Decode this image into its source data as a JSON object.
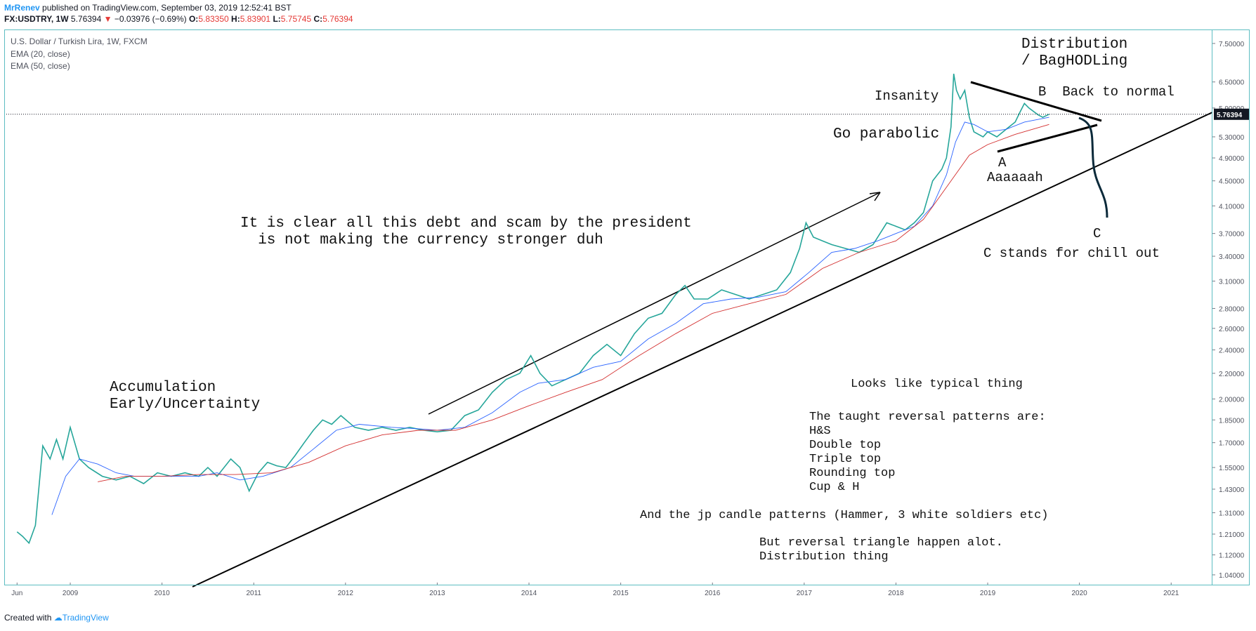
{
  "header": {
    "author": "MrRenev",
    "published": "published on TradingView.com, September 03, 2019 12:52:41 BST",
    "symbol": "FX:USDTRY, 1W",
    "last": "5.76394",
    "change": "−0.03976 (−0.69%)",
    "o_label": "O:",
    "o": "5.83350",
    "h_label": "H:",
    "h": "5.83901",
    "l_label": "L:",
    "l": "5.75745",
    "c_label": "C:",
    "c": "5.76394"
  },
  "legend": {
    "title": "U.S. Dollar / Turkish Lira, 1W, FXCM",
    "ema20": "EMA (20, close)",
    "ema50": "EMA (50, close)"
  },
  "annotations": {
    "distribution": "Distribution\n/ BagHODLing",
    "insanity": "Insanity",
    "b_back": "B  Back to normal",
    "go_parabolic": "Go parabolic",
    "a": "A",
    "aaaaaah": "Aaaaaah",
    "c": "C",
    "c_chill": "C stands for chill out",
    "debt": "It is clear all this debt and scam by the president\n  is not making the currency stronger duh",
    "accumulation": "Accumulation\nEarly/Uncertainty",
    "typical": "Looks like typical thing",
    "patterns": "The taught reversal patterns are:\nH&S\nDouble top\nTriple top\nRounding top\nCup & H",
    "jp": "And the jp candle patterns (Hammer, 3 white soldiers etc)",
    "triangle": "But reversal triangle happen alot.\nDistribution thing"
  },
  "footer": {
    "created": "Created with",
    "brand": "TradingView"
  },
  "colors": {
    "price": "#26a69a",
    "ema20": "#2962ff",
    "ema50": "#d32f2f",
    "frame": "#5dbdc2",
    "last_badge": "#131722"
  },
  "chart_data": {
    "type": "line",
    "title": "U.S. Dollar / Turkish Lira, 1W, FXCM",
    "y_scale": "log",
    "ylim": [
      1.0,
      7.9
    ],
    "xlim": [
      2008.28,
      2021.45
    ],
    "y_ticks": [
      "7.50000",
      "6.50000",
      "5.90000",
      "5.30000",
      "4.90000",
      "4.50000",
      "4.10000",
      "3.70000",
      "3.40000",
      "3.10000",
      "2.80000",
      "2.60000",
      "2.40000",
      "2.20000",
      "2.00000",
      "1.85000",
      "1.70000",
      "1.55000",
      "1.43000",
      "1.31000",
      "1.21000",
      "1.12000",
      "1.04000"
    ],
    "x_ticks": [
      {
        "label": "Jun",
        "x": 2008.42
      },
      {
        "label": "2009",
        "x": 2009.0
      },
      {
        "label": "2010",
        "x": 2010.0
      },
      {
        "label": "2011",
        "x": 2011.0
      },
      {
        "label": "2012",
        "x": 2012.0
      },
      {
        "label": "2013",
        "x": 2013.0
      },
      {
        "label": "2014",
        "x": 2014.0
      },
      {
        "label": "2015",
        "x": 2015.0
      },
      {
        "label": "2016",
        "x": 2016.0
      },
      {
        "label": "2017",
        "x": 2017.0
      },
      {
        "label": "2018",
        "x": 2018.0
      },
      {
        "label": "2019",
        "x": 2019.0
      },
      {
        "label": "2020",
        "x": 2020.0
      },
      {
        "label": "2021",
        "x": 2021.0
      }
    ],
    "last_value_label": "5.76394",
    "last_value": 5.76394,
    "series": [
      {
        "name": "U.S. Dollar / Turkish Lira, 1W, FXCM",
        "x": [
          2008.42,
          2008.48,
          2008.55,
          2008.62,
          2008.7,
          2008.78,
          2008.85,
          2008.92,
          2009.0,
          2009.1,
          2009.2,
          2009.35,
          2009.5,
          2009.65,
          2009.8,
          2009.95,
          2010.1,
          2010.25,
          2010.4,
          2010.5,
          2010.6,
          2010.75,
          2010.85,
          2010.95,
          2011.05,
          2011.15,
          2011.25,
          2011.35,
          2011.45,
          2011.55,
          2011.65,
          2011.75,
          2011.85,
          2011.95,
          2012.1,
          2012.25,
          2012.4,
          2012.55,
          2012.7,
          2012.85,
          2013.0,
          2013.15,
          2013.3,
          2013.45,
          2013.6,
          2013.75,
          2013.9,
          2014.02,
          2014.12,
          2014.25,
          2014.4,
          2014.55,
          2014.7,
          2014.85,
          2015.0,
          2015.15,
          2015.3,
          2015.45,
          2015.6,
          2015.7,
          2015.8,
          2015.95,
          2016.1,
          2016.25,
          2016.4,
          2016.55,
          2016.7,
          2016.85,
          2016.95,
          2017.02,
          2017.1,
          2017.2,
          2017.3,
          2017.45,
          2017.6,
          2017.75,
          2017.9,
          2018.0,
          2018.1,
          2018.2,
          2018.3,
          2018.4,
          2018.5,
          2018.55,
          2018.6,
          2018.63,
          2018.66,
          2018.7,
          2018.75,
          2018.8,
          2018.85,
          2018.95,
          2019.0,
          2019.1,
          2019.2,
          2019.3,
          2019.35,
          2019.4,
          2019.45,
          2019.55,
          2019.6,
          2019.67
        ],
        "values": [
          1.22,
          1.2,
          1.17,
          1.25,
          1.68,
          1.6,
          1.72,
          1.6,
          1.8,
          1.6,
          1.55,
          1.5,
          1.48,
          1.5,
          1.46,
          1.52,
          1.5,
          1.52,
          1.5,
          1.55,
          1.5,
          1.6,
          1.55,
          1.42,
          1.52,
          1.58,
          1.56,
          1.55,
          1.62,
          1.7,
          1.78,
          1.85,
          1.82,
          1.88,
          1.8,
          1.78,
          1.8,
          1.78,
          1.8,
          1.78,
          1.77,
          1.78,
          1.88,
          1.92,
          2.05,
          2.15,
          2.2,
          2.35,
          2.2,
          2.1,
          2.15,
          2.2,
          2.35,
          2.45,
          2.35,
          2.55,
          2.7,
          2.75,
          2.95,
          3.05,
          2.9,
          2.9,
          3.0,
          2.95,
          2.9,
          2.95,
          3.0,
          3.2,
          3.5,
          3.85,
          3.65,
          3.6,
          3.55,
          3.5,
          3.45,
          3.55,
          3.85,
          3.8,
          3.75,
          3.85,
          4.0,
          4.5,
          4.7,
          4.9,
          5.5,
          6.7,
          6.3,
          6.1,
          6.3,
          5.7,
          5.4,
          5.3,
          5.4,
          5.3,
          5.45,
          5.6,
          5.8,
          6.0,
          5.9,
          5.75,
          5.7,
          5.76394
        ]
      },
      {
        "name": "EMA (20, close)",
        "x": [
          2008.8,
          2008.95,
          2009.1,
          2009.3,
          2009.5,
          2009.7,
          2010.0,
          2010.4,
          2010.6,
          2010.85,
          2011.1,
          2011.4,
          2011.65,
          2011.9,
          2012.15,
          2012.5,
          2012.8,
          2013.0,
          2013.3,
          2013.6,
          2013.9,
          2014.1,
          2014.4,
          2014.7,
          2015.0,
          2015.3,
          2015.6,
          2015.9,
          2016.2,
          2016.5,
          2016.8,
          2017.05,
          2017.3,
          2017.55,
          2017.8,
          2018.0,
          2018.2,
          2018.4,
          2018.55,
          2018.65,
          2018.75,
          2018.85,
          2019.0,
          2019.2,
          2019.4,
          2019.67
        ],
        "values": [
          1.3,
          1.5,
          1.6,
          1.57,
          1.52,
          1.5,
          1.5,
          1.5,
          1.52,
          1.48,
          1.5,
          1.55,
          1.66,
          1.78,
          1.82,
          1.8,
          1.79,
          1.78,
          1.8,
          1.9,
          2.05,
          2.12,
          2.15,
          2.25,
          2.3,
          2.5,
          2.65,
          2.85,
          2.9,
          2.92,
          2.98,
          3.2,
          3.45,
          3.5,
          3.6,
          3.7,
          3.8,
          4.1,
          4.6,
          5.2,
          5.6,
          5.55,
          5.4,
          5.45,
          5.6,
          5.7
        ]
      },
      {
        "name": "EMA (50, close)",
        "x": [
          2009.3,
          2009.6,
          2010.0,
          2010.4,
          2010.8,
          2011.2,
          2011.6,
          2012.0,
          2012.4,
          2012.8,
          2013.2,
          2013.6,
          2014.0,
          2014.4,
          2014.8,
          2015.2,
          2015.6,
          2016.0,
          2016.4,
          2016.8,
          2017.2,
          2017.6,
          2018.0,
          2018.3,
          2018.6,
          2018.8,
          2019.0,
          2019.3,
          2019.67
        ],
        "values": [
          1.47,
          1.5,
          1.5,
          1.51,
          1.51,
          1.52,
          1.58,
          1.68,
          1.75,
          1.78,
          1.78,
          1.85,
          1.95,
          2.05,
          2.15,
          2.35,
          2.55,
          2.75,
          2.85,
          2.95,
          3.25,
          3.45,
          3.6,
          3.9,
          4.5,
          4.95,
          5.15,
          5.35,
          5.55
        ]
      }
    ]
  }
}
